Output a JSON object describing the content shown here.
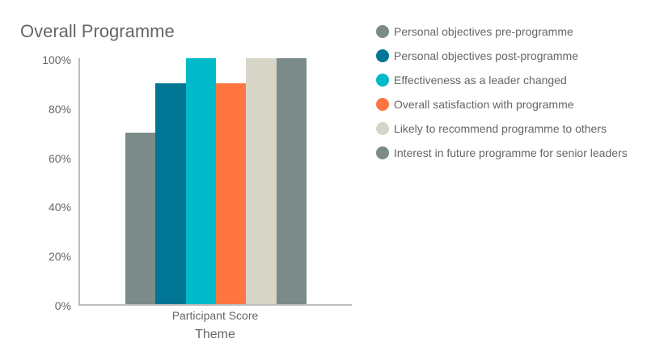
{
  "chart_data": {
    "type": "bar",
    "title": "Overall Programme",
    "xlabel": "Theme",
    "ylabel": "",
    "categories": [
      "Participant Score"
    ],
    "series": [
      {
        "name": "Personal objectives pre-programme",
        "values": [
          70
        ],
        "color": "#7a8b89"
      },
      {
        "name": "Personal objectives post-programme",
        "values": [
          90
        ],
        "color": "#007594"
      },
      {
        "name": "Effectiveness as a leader changed",
        "values": [
          100
        ],
        "color": "#00b9c9"
      },
      {
        "name": "Overall satisfaction with programme",
        "values": [
          90
        ],
        "color": "#ff7643"
      },
      {
        "name": "Likely to recommend programme to others",
        "values": [
          100
        ],
        "color": "#d7d5c8"
      },
      {
        "name": "Interest in future programme for senior leaders",
        "values": [
          100
        ],
        "color": "#7a8b89"
      }
    ],
    "ylim": [
      0,
      100
    ],
    "yticks": [
      "0%",
      "20%",
      "40%",
      "60%",
      "80%",
      "100%"
    ],
    "grid": false,
    "legend_position": "right"
  }
}
